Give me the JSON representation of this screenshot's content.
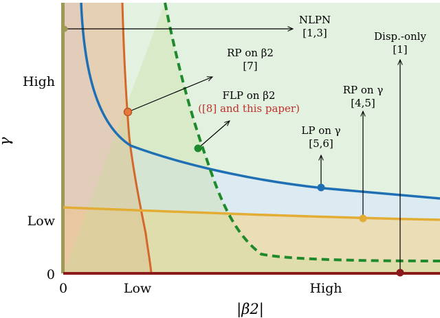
{
  "axes": {
    "x_label": "|β2|",
    "y_label": "γ",
    "x_ticks": [
      "0",
      "Low",
      "High"
    ],
    "y_ticks": [
      "High",
      "Low",
      "0"
    ]
  },
  "labels": {
    "nlpn": {
      "line1": "NLPN",
      "line2": "[1,3]"
    },
    "disp": {
      "line1": "Disp.-only",
      "line2": "[1]"
    },
    "rp_beta": {
      "line1": "RP on β2",
      "line2": "[7]"
    },
    "flp_beta": {
      "line1": "FLP on β2",
      "line2": "([8] and this paper)"
    },
    "rp_gamma": {
      "line1": "RP on γ",
      "line2": "[4,5]"
    },
    "lp_gamma": {
      "line1": "LP on γ",
      "line2": "[5,6]"
    }
  },
  "colors": {
    "blue": "#1f6fb5",
    "orange": "#d4672a",
    "yellow": "#e3ad35",
    "green": "#1e8a2c",
    "dark_red": "#8b1a1a",
    "red_text": "#c0312b"
  }
}
